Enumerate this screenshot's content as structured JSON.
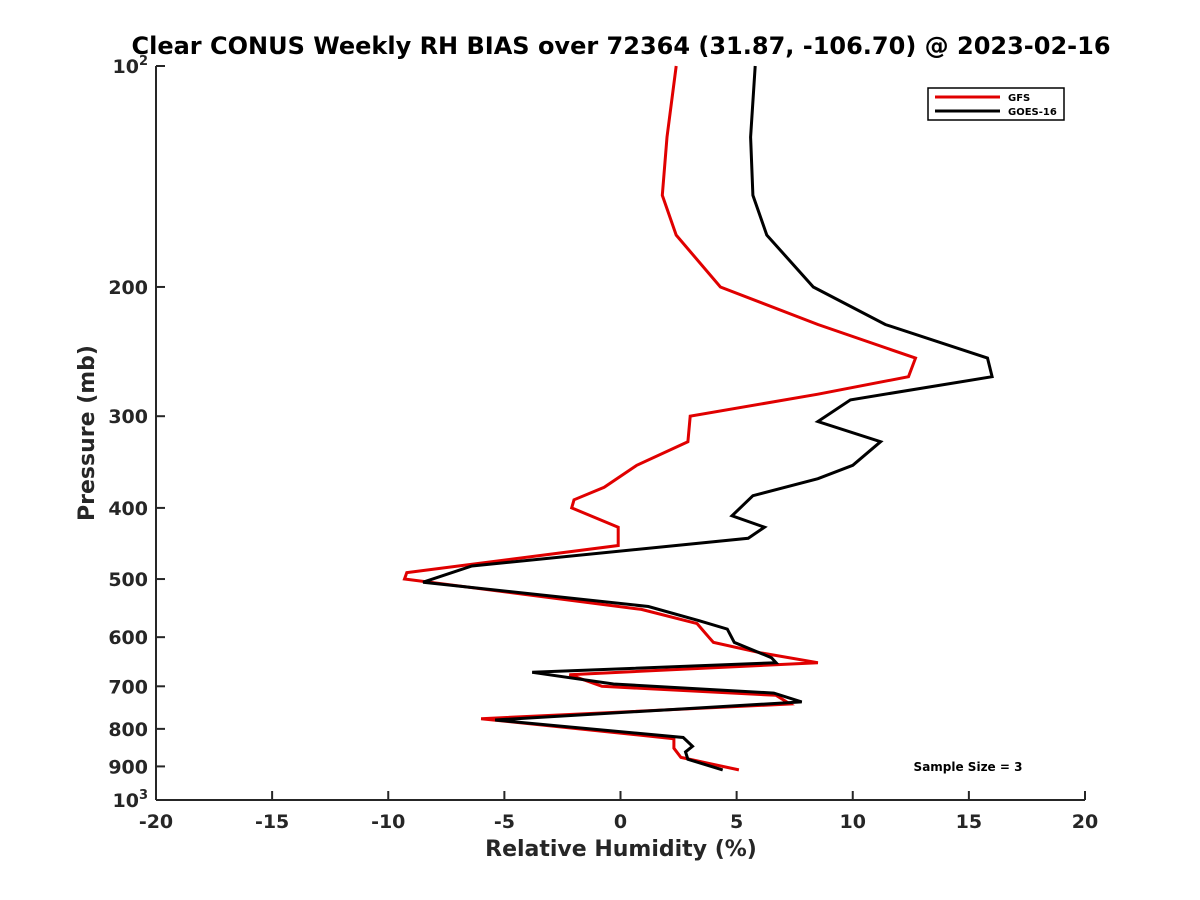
{
  "chart_data": {
    "type": "line",
    "title": "Clear CONUS Weekly RH BIAS over 72364 (31.87, -106.70) @ 2023-02-16",
    "xlabel": "Relative Humidity (%)",
    "ylabel": "Pressure (mb)",
    "xlim": [
      -20,
      20
    ],
    "ylim": [
      1000,
      100
    ],
    "y_scale": "log",
    "y_reversed": true,
    "grid": false,
    "legend_position": "top-right",
    "x_ticks": [
      -20,
      -15,
      -10,
      -5,
      0,
      5,
      10,
      15,
      20
    ],
    "x_tick_labels": [
      "-20",
      "-15",
      "-10",
      "-5",
      "0",
      "5",
      "10",
      "15",
      "20"
    ],
    "y_ticks": [
      100,
      200,
      300,
      400,
      500,
      600,
      700,
      800,
      900,
      1000
    ],
    "y_tick_labels": [
      {
        "base": "10",
        "sup": "2"
      },
      {
        "base": "200",
        "sup": ""
      },
      {
        "base": "300",
        "sup": ""
      },
      {
        "base": "400",
        "sup": ""
      },
      {
        "base": "500",
        "sup": ""
      },
      {
        "base": "600",
        "sup": ""
      },
      {
        "base": "700",
        "sup": ""
      },
      {
        "base": "800",
        "sup": ""
      },
      {
        "base": "900",
        "sup": ""
      },
      {
        "base": "10",
        "sup": "3"
      }
    ],
    "annotation": "Sample Size = 3",
    "series": [
      {
        "name": "GFS",
        "color": "#e00000",
        "points": [
          {
            "x": 2.4,
            "p": 100
          },
          {
            "x": 2.0,
            "p": 125
          },
          {
            "x": 1.8,
            "p": 150
          },
          {
            "x": 2.4,
            "p": 170
          },
          {
            "x": 4.3,
            "p": 200
          },
          {
            "x": 8.5,
            "p": 225
          },
          {
            "x": 12.7,
            "p": 250
          },
          {
            "x": 12.4,
            "p": 265
          },
          {
            "x": 8.5,
            "p": 280
          },
          {
            "x": 3.0,
            "p": 300
          },
          {
            "x": 2.9,
            "p": 325
          },
          {
            "x": 0.7,
            "p": 350
          },
          {
            "x": -0.7,
            "p": 375
          },
          {
            "x": -2.0,
            "p": 390
          },
          {
            "x": -2.1,
            "p": 400
          },
          {
            "x": -0.1,
            "p": 425
          },
          {
            "x": -0.1,
            "p": 450
          },
          {
            "x": -9.2,
            "p": 490
          },
          {
            "x": -9.3,
            "p": 500
          },
          {
            "x": 0.9,
            "p": 550
          },
          {
            "x": 3.3,
            "p": 575
          },
          {
            "x": 3.8,
            "p": 600
          },
          {
            "x": 4.0,
            "p": 610
          },
          {
            "x": 6.0,
            "p": 630
          },
          {
            "x": 8.5,
            "p": 650
          },
          {
            "x": -2.2,
            "p": 675
          },
          {
            "x": -0.8,
            "p": 700
          },
          {
            "x": 6.7,
            "p": 720
          },
          {
            "x": 7.3,
            "p": 740
          },
          {
            "x": -6.0,
            "p": 775
          },
          {
            "x": 2.3,
            "p": 825
          },
          {
            "x": 2.3,
            "p": 850
          },
          {
            "x": 2.6,
            "p": 875
          },
          {
            "x": 5.1,
            "p": 910
          }
        ]
      },
      {
        "name": "GOES-16",
        "color": "#000000",
        "points": [
          {
            "x": 5.8,
            "p": 100
          },
          {
            "x": 5.6,
            "p": 125
          },
          {
            "x": 5.7,
            "p": 150
          },
          {
            "x": 6.3,
            "p": 170
          },
          {
            "x": 8.3,
            "p": 200
          },
          {
            "x": 11.4,
            "p": 225
          },
          {
            "x": 15.8,
            "p": 250
          },
          {
            "x": 16.0,
            "p": 265
          },
          {
            "x": 9.9,
            "p": 285
          },
          {
            "x": 8.5,
            "p": 305
          },
          {
            "x": 11.2,
            "p": 325
          },
          {
            "x": 10.0,
            "p": 350
          },
          {
            "x": 8.5,
            "p": 365
          },
          {
            "x": 5.7,
            "p": 385
          },
          {
            "x": 4.8,
            "p": 410
          },
          {
            "x": 6.2,
            "p": 425
          },
          {
            "x": 5.5,
            "p": 440
          },
          {
            "x": -6.4,
            "p": 480
          },
          {
            "x": -8.5,
            "p": 505
          },
          {
            "x": 1.2,
            "p": 545
          },
          {
            "x": 3.4,
            "p": 570
          },
          {
            "x": 4.6,
            "p": 585
          },
          {
            "x": 4.9,
            "p": 610
          },
          {
            "x": 6.5,
            "p": 640
          },
          {
            "x": 6.7,
            "p": 650
          },
          {
            "x": -3.8,
            "p": 670
          },
          {
            "x": -0.3,
            "p": 695
          },
          {
            "x": 6.6,
            "p": 715
          },
          {
            "x": 7.8,
            "p": 735
          },
          {
            "x": -5.4,
            "p": 778
          },
          {
            "x": 2.7,
            "p": 822
          },
          {
            "x": 3.1,
            "p": 845
          },
          {
            "x": 2.8,
            "p": 860
          },
          {
            "x": 2.9,
            "p": 880
          },
          {
            "x": 4.4,
            "p": 910
          }
        ]
      }
    ]
  }
}
